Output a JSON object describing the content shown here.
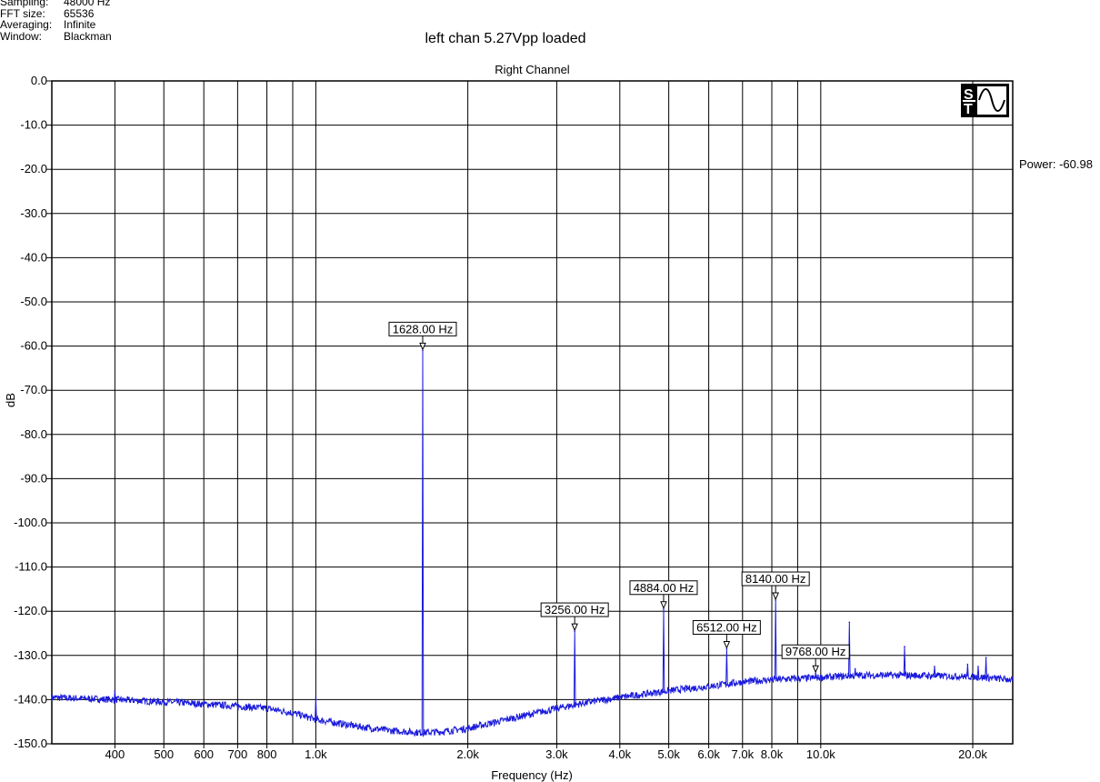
{
  "info": {
    "rows": [
      {
        "key": "Sampling:",
        "value": "48000 Hz"
      },
      {
        "key": "FFT size:",
        "value": "65536"
      },
      {
        "key": "Averaging:",
        "value": "Infinite"
      },
      {
        "key": "Window:",
        "value": "Blackman"
      }
    ]
  },
  "power_readout": "Power: -60.98",
  "logo_icon": "spectraplus-st-logo",
  "chart_data": {
    "type": "line",
    "title": "left chan 5.27Vpp loaded",
    "subtitle": "Right Channel",
    "xlabel": "Frequency (Hz)",
    "ylabel": "dB",
    "xscale": "log",
    "xlim": [
      300,
      24000
    ],
    "ylim": [
      -150,
      0
    ],
    "grid": true,
    "line_color": "#1a1adc",
    "y_ticks": [
      0,
      -10,
      -20,
      -30,
      -40,
      -50,
      -60,
      -70,
      -80,
      -90,
      -100,
      -110,
      -120,
      -130,
      -140,
      -150
    ],
    "y_tick_labels": [
      "0.0",
      "-10.0",
      "-20.0",
      "-30.0",
      "-40.0",
      "-50.0",
      "-60.0",
      "-70.0",
      "-80.0",
      "-90.0",
      "-100.0",
      "-110.0",
      "-120.0",
      "-130.0",
      "-140.0",
      "-150.0"
    ],
    "x_ticks": [
      400,
      500,
      600,
      700,
      800,
      1000,
      2000,
      3000,
      4000,
      5000,
      6000,
      7000,
      8000,
      10000,
      20000
    ],
    "x_tick_labels": [
      "400",
      "500",
      "600",
      "700",
      "800",
      "1.0k",
      "2.0k",
      "3.0k",
      "4.0k",
      "5.0k",
      "6.0k",
      "7.0k",
      "8.0k",
      "10.0k",
      "20.0k"
    ],
    "x_grid_lines": [
      400,
      500,
      600,
      700,
      800,
      900,
      1000,
      2000,
      3000,
      4000,
      5000,
      6000,
      7000,
      8000,
      9000,
      10000,
      20000
    ],
    "noise_floor": {
      "x": [
        300,
        400,
        500,
        600,
        700,
        800,
        900,
        1000,
        1200,
        1400,
        1628,
        1800,
        2000,
        2500,
        3000,
        3500,
        4000,
        5000,
        6000,
        7000,
        8000,
        10000,
        12000,
        15000,
        20000,
        24000
      ],
      "y": [
        -139.5,
        -140,
        -140.5,
        -141,
        -141.5,
        -142,
        -143,
        -144.5,
        -146,
        -147,
        -147.5,
        -147.2,
        -146.5,
        -144,
        -142,
        -140.5,
        -139.5,
        -138,
        -137,
        -136,
        -135.5,
        -135,
        -134.5,
        -134.5,
        -134.8,
        -135.5
      ]
    },
    "peaks": [
      {
        "x": 400,
        "y": -138,
        "label": ""
      },
      {
        "x": 1000,
        "y": -139.5,
        "label": ""
      },
      {
        "x": 1628,
        "y": -60.98,
        "label": "1628.00 Hz"
      },
      {
        "x": 3256,
        "y": -124.5,
        "label": "3256.00 Hz"
      },
      {
        "x": 4884,
        "y": -119.5,
        "label": "4884.00 Hz"
      },
      {
        "x": 6512,
        "y": -128.5,
        "label": "6512.00 Hz"
      },
      {
        "x": 8140,
        "y": -117.5,
        "label": "8140.00 Hz"
      },
      {
        "x": 9768,
        "y": -134,
        "label": "9768.00 Hz"
      },
      {
        "x": 11396,
        "y": -122.5,
        "label": ""
      },
      {
        "x": 11700,
        "y": -133,
        "label": ""
      },
      {
        "x": 14652,
        "y": -128,
        "label": ""
      },
      {
        "x": 16800,
        "y": -132.5,
        "label": ""
      },
      {
        "x": 19536,
        "y": -132,
        "label": ""
      },
      {
        "x": 20500,
        "y": -132.5,
        "label": ""
      },
      {
        "x": 21250,
        "y": -130.5,
        "label": ""
      }
    ]
  }
}
